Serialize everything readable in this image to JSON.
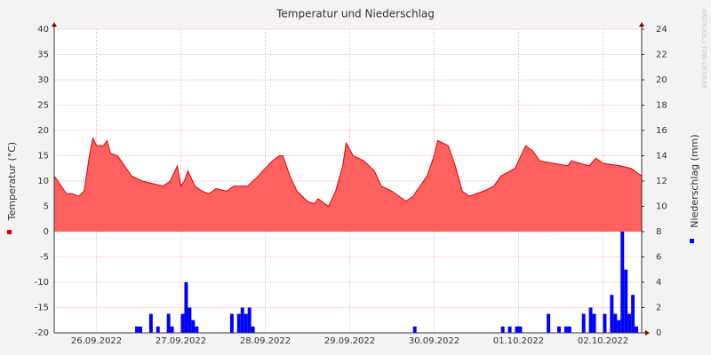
{
  "chart_data": {
    "type": "combo",
    "title": "Temperatur und Niederschlag",
    "ylabel": "Temperatur (°C)",
    "y2label": "Niederschlag (mm)",
    "watermark": "RRDTOOL / TOBI OETIKER",
    "xlim": [
      0,
      167
    ],
    "xticks": [
      {
        "value": 12,
        "label": "26.09.2022"
      },
      {
        "value": 36,
        "label": "27.09.2022"
      },
      {
        "value": 60,
        "label": "28.09.2022"
      },
      {
        "value": 84,
        "label": "29.09.2022"
      },
      {
        "value": 108,
        "label": "30.09.2022"
      },
      {
        "value": 132,
        "label": "01.10.2022"
      },
      {
        "value": 156,
        "label": "02.10.2022"
      }
    ],
    "ylim": [
      -20,
      40
    ],
    "yticks": [
      -20,
      -15,
      -10,
      -5,
      0,
      5,
      10,
      15,
      20,
      25,
      30,
      35,
      40
    ],
    "y2lim": [
      0,
      24
    ],
    "y2ticks": [
      0,
      2,
      4,
      6,
      8,
      10,
      12,
      14,
      16,
      18,
      20,
      22,
      24
    ],
    "grid": true,
    "series": [
      {
        "type": "area",
        "color": "#ff6060",
        "line_color": "#dd0000",
        "x": [
          0,
          1,
          3.5,
          5,
          7,
          8.5,
          10,
          11,
          12,
          14,
          15,
          16,
          18,
          20,
          22,
          25,
          28,
          31,
          33,
          35,
          36,
          37,
          38,
          40,
          42,
          44,
          46,
          49,
          51,
          55,
          58,
          62,
          64,
          65,
          67,
          69,
          72,
          74,
          75,
          78,
          80,
          82,
          83,
          85,
          88,
          91,
          93,
          96,
          98,
          100,
          102,
          106,
          108,
          109,
          112,
          114,
          116,
          118,
          122,
          125,
          127,
          131,
          134,
          136,
          138,
          142,
          146,
          147,
          152,
          154,
          156,
          161,
          164,
          167
        ],
        "values": [
          11,
          10,
          7.5,
          7.5,
          7,
          8,
          15,
          18.5,
          17,
          17,
          18,
          15.5,
          15,
          13,
          11,
          10,
          9.5,
          9,
          10,
          13,
          9,
          10,
          12,
          9,
          8,
          7.5,
          8.5,
          8,
          9,
          9,
          11,
          14,
          15,
          15,
          11,
          8,
          6,
          5.5,
          6.5,
          5,
          8,
          13,
          17.5,
          15,
          14,
          12,
          9,
          8,
          7,
          6,
          7,
          11,
          15,
          18,
          17,
          13,
          8,
          7,
          8,
          9,
          11,
          12.5,
          17,
          16,
          14,
          13.5,
          13,
          14,
          13,
          14.5,
          13.5,
          13,
          12.5,
          11
        ]
      },
      {
        "type": "bar",
        "axis": "y2",
        "color": "#0000ff",
        "x": [
          23,
          24,
          27,
          29,
          32,
          33,
          36,
          37,
          38,
          39,
          40,
          50,
          52,
          53,
          54,
          55,
          56,
          102,
          127,
          129,
          131,
          132,
          140,
          143,
          145,
          146,
          150,
          152,
          153,
          156,
          158,
          159,
          160,
          161,
          162,
          163,
          164,
          165
        ],
        "values": [
          0.5,
          0.5,
          1.5,
          0.5,
          1.5,
          0.5,
          1.5,
          4,
          2,
          1,
          0.5,
          1.5,
          1.5,
          2,
          1.5,
          2,
          0.5,
          0.5,
          0.5,
          0.5,
          0.5,
          0.5,
          1.5,
          0.5,
          0.5,
          0.5,
          1.5,
          2,
          1.5,
          1.5,
          3,
          1.5,
          1,
          8,
          5,
          1.5,
          3,
          0.5
        ]
      }
    ]
  }
}
